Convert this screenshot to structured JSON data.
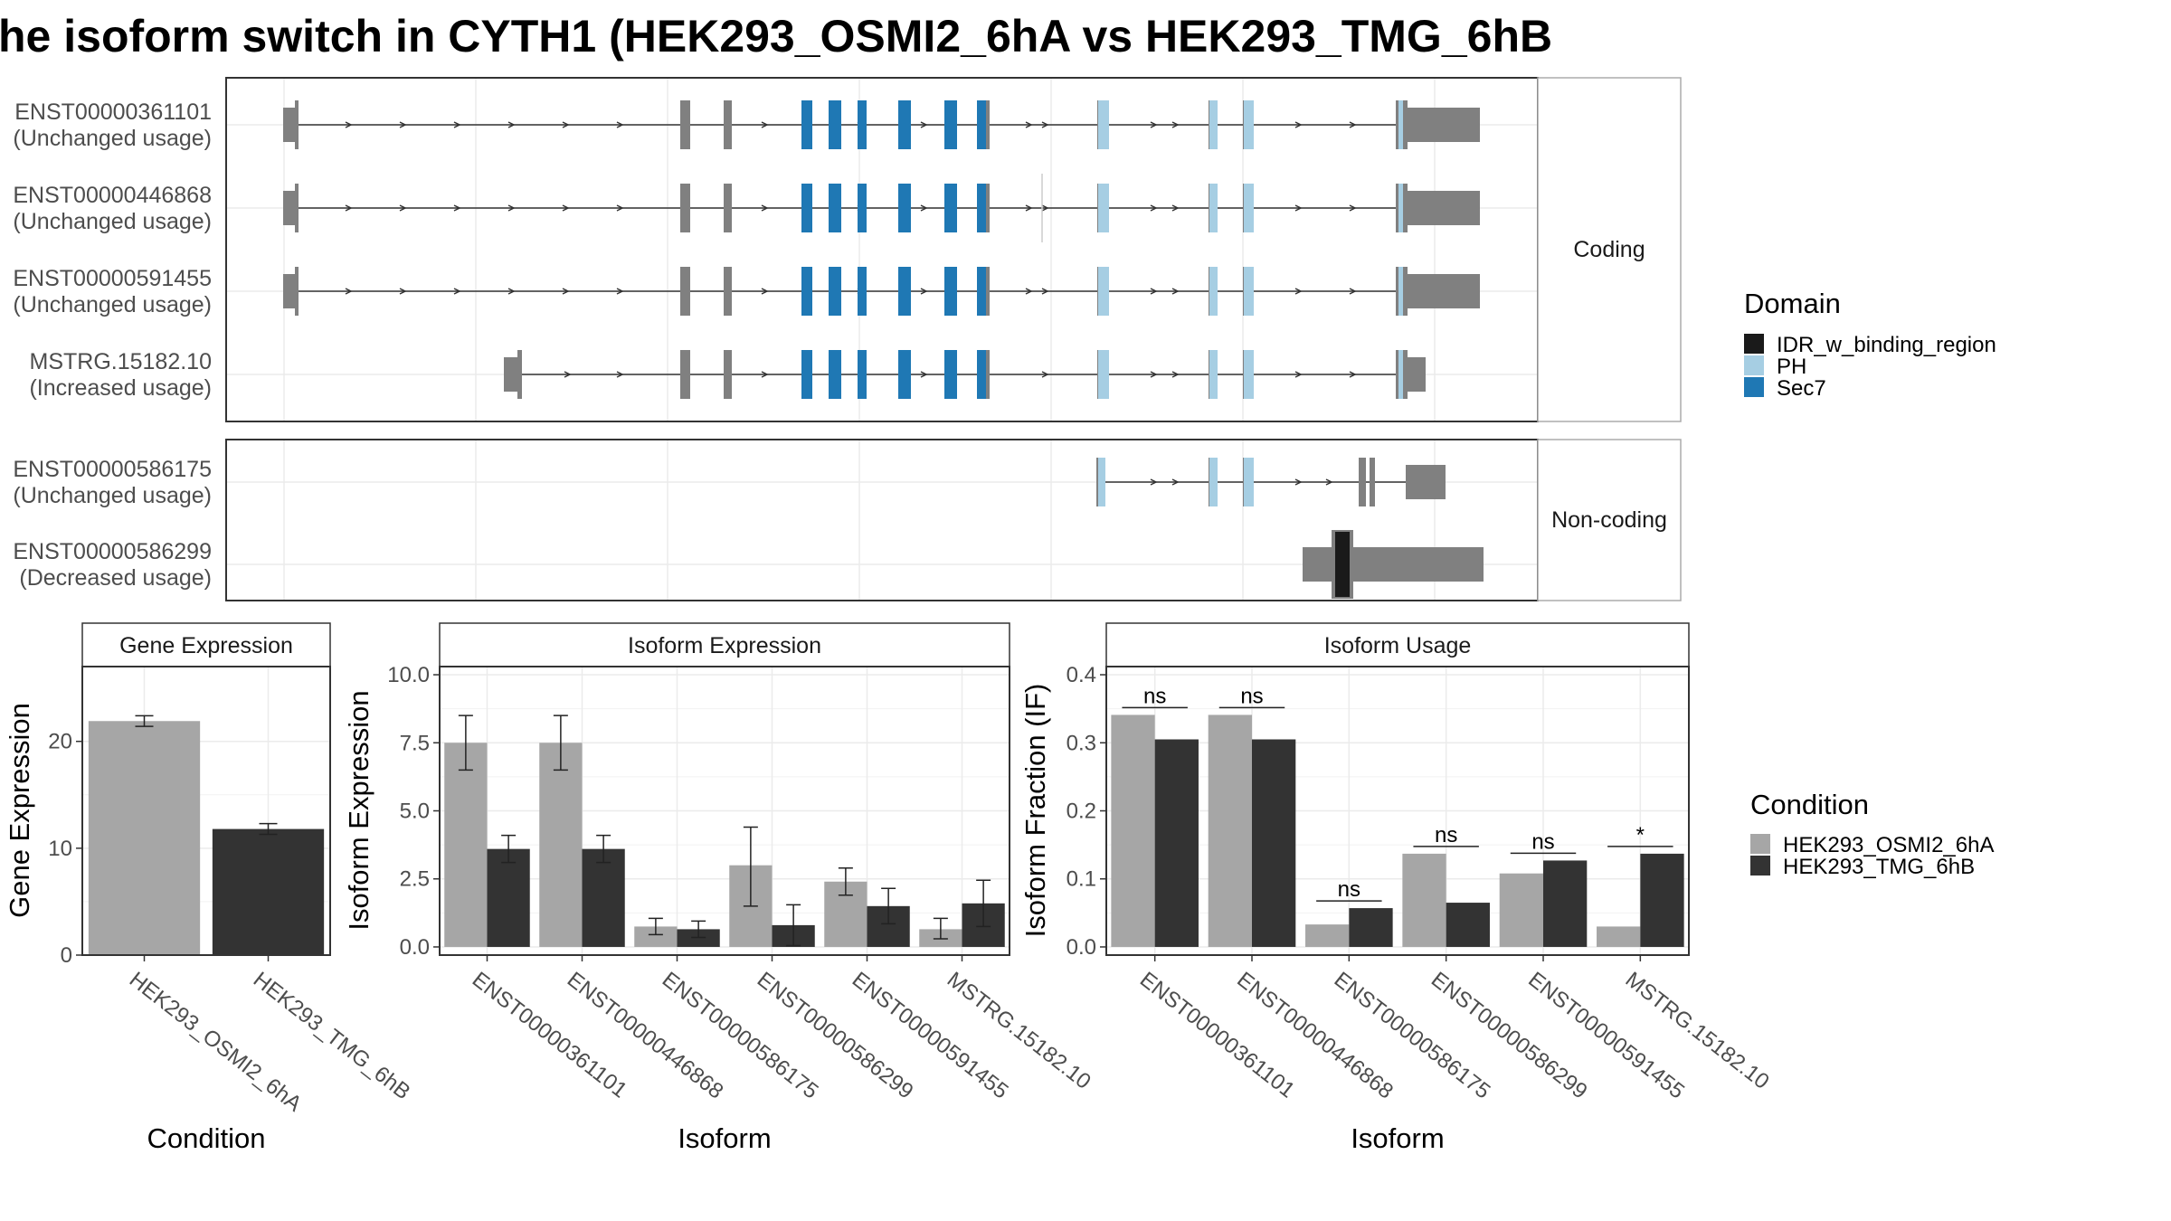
{
  "title": "he isoform switch in CYTH1 (HEK293_OSMI2_6hA vs HEK293_TMG_6hB",
  "colors": {
    "exon": "#808080",
    "intron": "#333333",
    "IDR_w_binding_region": "#1a1a1a",
    "PH": "#a6cee3",
    "Sec7": "#1f78b4",
    "cond_a": "#a6a6a6",
    "cond_b": "#333333"
  },
  "structure": {
    "facets": [
      "Coding",
      "Non-coding"
    ],
    "transcripts": [
      {
        "id": "ENST00000361101",
        "usage": "(Unchanged usage)",
        "facet": 0
      },
      {
        "id": "ENST00000446868",
        "usage": "(Unchanged usage)",
        "facet": 0
      },
      {
        "id": "ENST00000591455",
        "usage": "(Unchanged usage)",
        "facet": 0
      },
      {
        "id": "MSTRG.15182.10",
        "usage": "(Increased usage)",
        "facet": 0
      },
      {
        "id": "ENST00000586175",
        "usage": "(Unchanged usage)",
        "facet": 1
      },
      {
        "id": "ENST00000586299",
        "usage": "(Decreased usage)",
        "facet": 1
      }
    ],
    "legend_title": "Domain",
    "legend_items": [
      {
        "label": "IDR_w_binding_region",
        "color": "#1a1a1a"
      },
      {
        "label": "PH",
        "color": "#a6cee3"
      },
      {
        "label": "Sec7",
        "color": "#1f78b4"
      }
    ]
  },
  "gene_panel": {
    "strip": "Gene Expression",
    "ylabel": "Gene Expression",
    "xlabel": "Condition",
    "ticks": [
      "0",
      "10",
      "20"
    ]
  },
  "iso_panel": {
    "strip": "Isoform Expression",
    "ylabel": "Isoform Expression",
    "xlabel": "Isoform",
    "ticks": [
      "0.0",
      "2.5",
      "5.0",
      "7.5",
      "10.0"
    ]
  },
  "usage_panel": {
    "strip": "Isoform Usage",
    "ylabel": "Isoform Fraction (IF)",
    "xlabel": "Isoform",
    "ticks": [
      "0.0",
      "0.1",
      "0.2",
      "0.3",
      "0.4"
    ]
  },
  "condition_legend": {
    "title": "Condition",
    "items": [
      {
        "label": "HEK293_OSMI2_6hA",
        "color": "#a6a6a6"
      },
      {
        "label": "HEK293_TMG_6hB",
        "color": "#333333"
      }
    ]
  },
  "chart_data": [
    {
      "type": "bar",
      "title": "Gene Expression",
      "xlabel": "Condition",
      "ylabel": "Gene Expression",
      "ylim": [
        0,
        27
      ],
      "categories": [
        "HEK293_OSMI2_6hA",
        "HEK293_TMG_6hB"
      ],
      "values": [
        21.9,
        11.8
      ],
      "errors": [
        [
          21.4,
          22.4
        ],
        [
          11.3,
          12.3
        ]
      ]
    },
    {
      "type": "bar",
      "title": "Isoform Expression",
      "xlabel": "Isoform",
      "ylabel": "Isoform Expression",
      "ylim": [
        -0.3,
        10.3
      ],
      "categories": [
        "ENST00000361101",
        "ENST00000446868",
        "ENST00000586175",
        "ENST00000586299",
        "ENST00000591455",
        "MSTRG.15182.10"
      ],
      "series": [
        {
          "name": "HEK293_OSMI2_6hA",
          "values": [
            7.5,
            7.5,
            0.75,
            3.0,
            2.4,
            0.65
          ],
          "errors": [
            [
              6.5,
              8.5
            ],
            [
              6.5,
              8.5
            ],
            [
              0.45,
              1.05
            ],
            [
              1.5,
              4.4
            ],
            [
              1.9,
              2.9
            ],
            [
              0.3,
              1.05
            ]
          ]
        },
        {
          "name": "HEK293_TMG_6hB",
          "values": [
            3.6,
            3.6,
            0.65,
            0.8,
            1.5,
            1.6
          ],
          "errors": [
            [
              3.1,
              4.1
            ],
            [
              3.1,
              4.1
            ],
            [
              0.35,
              0.95
            ],
            [
              0.05,
              1.55
            ],
            [
              0.85,
              2.15
            ],
            [
              0.75,
              2.45
            ]
          ]
        }
      ]
    },
    {
      "type": "bar",
      "title": "Isoform Usage",
      "xlabel": "Isoform",
      "ylabel": "Isoform Fraction (IF)",
      "ylim": [
        -0.012,
        0.412
      ],
      "categories": [
        "ENST00000361101",
        "ENST00000446868",
        "ENST00000586175",
        "ENST00000586299",
        "ENST00000591455",
        "MSTRG.15182.10"
      ],
      "series": [
        {
          "name": "HEK293_OSMI2_6hA",
          "values": [
            0.341,
            0.341,
            0.033,
            0.137,
            0.108,
            0.03
          ]
        },
        {
          "name": "HEK293_TMG_6hB",
          "values": [
            0.305,
            0.305,
            0.057,
            0.065,
            0.127,
            0.137
          ]
        }
      ],
      "significance": [
        "ns",
        "ns",
        "ns",
        "ns",
        "ns",
        "*"
      ]
    }
  ]
}
